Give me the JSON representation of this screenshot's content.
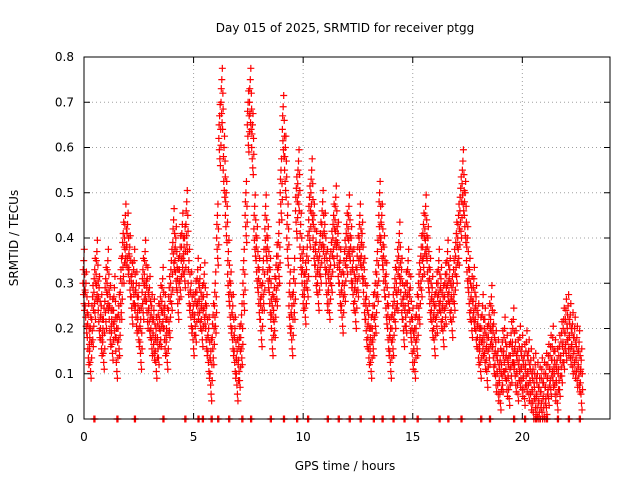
{
  "chart_data": {
    "type": "scatter",
    "title": "Day 015 of 2025, SRMTID for receiver ptgg",
    "xlabel": "GPS time / hours",
    "ylabel": "SRMTID / TECUs",
    "xlim": [
      0,
      24
    ],
    "ylim": [
      0,
      0.8
    ],
    "xticks": [
      0,
      5,
      10,
      15,
      20
    ],
    "yticks": [
      0,
      0.1,
      0.2,
      0.3,
      0.4,
      0.5,
      0.6,
      0.7,
      0.8
    ],
    "xtick_labels": [
      "0",
      "5",
      "10",
      "15",
      "20"
    ],
    "ytick_labels": [
      "0",
      "0.1",
      "0.2",
      "0.3",
      "0.4",
      "0.5",
      "0.6",
      "0.7",
      "0.8"
    ],
    "grid": true,
    "marker": "+",
    "color": "#ff0000",
    "series": [
      {
        "name": "SRMTID",
        "points": [
          [
            0.0,
            0.3
          ],
          [
            0.1,
            0.25
          ],
          [
            0.2,
            0.18
          ],
          [
            0.3,
            0.15
          ],
          [
            0.4,
            0.22
          ],
          [
            0.5,
            0.28
          ],
          [
            0.6,
            0.32
          ],
          [
            0.7,
            0.24
          ],
          [
            0.8,
            0.2
          ],
          [
            0.9,
            0.17
          ],
          [
            1.0,
            0.26
          ],
          [
            1.1,
            0.3
          ],
          [
            1.2,
            0.22
          ],
          [
            1.3,
            0.19
          ],
          [
            1.4,
            0.24
          ],
          [
            1.5,
            0.15
          ],
          [
            1.6,
            0.2
          ],
          [
            1.7,
            0.28
          ],
          [
            1.8,
            0.36
          ],
          [
            1.9,
            0.4
          ],
          [
            2.0,
            0.38
          ],
          [
            2.1,
            0.33
          ],
          [
            2.2,
            0.27
          ],
          [
            2.3,
            0.3
          ],
          [
            2.4,
            0.25
          ],
          [
            2.5,
            0.22
          ],
          [
            2.6,
            0.17
          ],
          [
            2.7,
            0.28
          ],
          [
            2.8,
            0.32
          ],
          [
            2.9,
            0.26
          ],
          [
            3.0,
            0.24
          ],
          [
            3.1,
            0.2
          ],
          [
            3.2,
            0.19
          ],
          [
            3.3,
            0.15
          ],
          [
            3.4,
            0.18
          ],
          [
            3.5,
            0.22
          ],
          [
            3.6,
            0.26
          ],
          [
            3.7,
            0.2
          ],
          [
            3.8,
            0.17
          ],
          [
            3.9,
            0.24
          ],
          [
            4.0,
            0.3
          ],
          [
            4.1,
            0.39
          ],
          [
            4.2,
            0.35
          ],
          [
            4.3,
            0.28
          ],
          [
            4.4,
            0.33
          ],
          [
            4.5,
            0.38
          ],
          [
            4.6,
            0.35
          ],
          [
            4.7,
            0.43
          ],
          [
            4.8,
            0.3
          ],
          [
            4.9,
            0.25
          ],
          [
            5.0,
            0.2
          ],
          [
            5.1,
            0.23
          ],
          [
            5.2,
            0.28
          ],
          [
            5.3,
            0.26
          ],
          [
            5.4,
            0.22
          ],
          [
            5.5,
            0.27
          ],
          [
            5.6,
            0.2
          ],
          [
            5.7,
            0.15
          ],
          [
            5.8,
            0.1
          ],
          [
            5.9,
            0.18
          ],
          [
            6.0,
            0.25
          ],
          [
            6.1,
            0.4
          ],
          [
            6.2,
            0.62
          ],
          [
            6.3,
            0.7
          ],
          [
            6.4,
            0.55
          ],
          [
            6.5,
            0.45
          ],
          [
            6.6,
            0.32
          ],
          [
            6.7,
            0.25
          ],
          [
            6.8,
            0.2
          ],
          [
            6.9,
            0.15
          ],
          [
            7.0,
            0.1
          ],
          [
            7.1,
            0.13
          ],
          [
            7.2,
            0.18
          ],
          [
            7.3,
            0.3
          ],
          [
            7.4,
            0.45
          ],
          [
            7.5,
            0.65
          ],
          [
            7.6,
            0.7
          ],
          [
            7.7,
            0.6
          ],
          [
            7.8,
            0.42
          ],
          [
            7.9,
            0.35
          ],
          [
            8.0,
            0.28
          ],
          [
            8.1,
            0.22
          ],
          [
            8.2,
            0.3
          ],
          [
            8.3,
            0.42
          ],
          [
            8.4,
            0.35
          ],
          [
            8.5,
            0.28
          ],
          [
            8.6,
            0.2
          ],
          [
            8.7,
            0.24
          ],
          [
            8.8,
            0.31
          ],
          [
            8.9,
            0.36
          ],
          [
            9.0,
            0.5
          ],
          [
            9.1,
            0.64
          ],
          [
            9.2,
            0.55
          ],
          [
            9.3,
            0.4
          ],
          [
            9.4,
            0.25
          ],
          [
            9.5,
            0.2
          ],
          [
            9.6,
            0.28
          ],
          [
            9.7,
            0.46
          ],
          [
            9.8,
            0.52
          ],
          [
            9.9,
            0.38
          ],
          [
            10.0,
            0.3
          ],
          [
            10.1,
            0.27
          ],
          [
            10.2,
            0.33
          ],
          [
            10.3,
            0.44
          ],
          [
            10.4,
            0.5
          ],
          [
            10.5,
            0.4
          ],
          [
            10.6,
            0.34
          ],
          [
            10.7,
            0.3
          ],
          [
            10.8,
            0.36
          ],
          [
            10.9,
            0.43
          ],
          [
            11.0,
            0.38
          ],
          [
            11.1,
            0.3
          ],
          [
            11.2,
            0.28
          ],
          [
            11.3,
            0.34
          ],
          [
            11.4,
            0.4
          ],
          [
            11.5,
            0.44
          ],
          [
            11.6,
            0.36
          ],
          [
            11.7,
            0.3
          ],
          [
            11.8,
            0.25
          ],
          [
            11.9,
            0.32
          ],
          [
            12.0,
            0.38
          ],
          [
            12.1,
            0.42
          ],
          [
            12.2,
            0.35
          ],
          [
            12.3,
            0.3
          ],
          [
            12.4,
            0.26
          ],
          [
            12.5,
            0.33
          ],
          [
            12.6,
            0.4
          ],
          [
            12.7,
            0.36
          ],
          [
            12.8,
            0.28
          ],
          [
            12.9,
            0.22
          ],
          [
            13.0,
            0.18
          ],
          [
            13.1,
            0.15
          ],
          [
            13.2,
            0.2
          ],
          [
            13.3,
            0.25
          ],
          [
            13.4,
            0.32
          ],
          [
            13.5,
            0.45
          ],
          [
            13.6,
            0.4
          ],
          [
            13.7,
            0.33
          ],
          [
            13.8,
            0.27
          ],
          [
            13.9,
            0.2
          ],
          [
            14.0,
            0.15
          ],
          [
            14.1,
            0.2
          ],
          [
            14.2,
            0.26
          ],
          [
            14.3,
            0.3
          ],
          [
            14.4,
            0.36
          ],
          [
            14.5,
            0.28
          ],
          [
            14.6,
            0.22
          ],
          [
            14.7,
            0.25
          ],
          [
            14.8,
            0.3
          ],
          [
            14.9,
            0.24
          ],
          [
            15.0,
            0.17
          ],
          [
            15.1,
            0.15
          ],
          [
            15.2,
            0.2
          ],
          [
            15.3,
            0.27
          ],
          [
            15.4,
            0.33
          ],
          [
            15.5,
            0.38
          ],
          [
            15.6,
            0.42
          ],
          [
            15.7,
            0.35
          ],
          [
            15.8,
            0.28
          ],
          [
            15.9,
            0.24
          ],
          [
            16.0,
            0.2
          ],
          [
            16.1,
            0.25
          ],
          [
            16.2,
            0.3
          ],
          [
            16.3,
            0.26
          ],
          [
            16.4,
            0.22
          ],
          [
            16.5,
            0.27
          ],
          [
            16.6,
            0.32
          ],
          [
            16.7,
            0.28
          ],
          [
            16.8,
            0.24
          ],
          [
            16.9,
            0.3
          ],
          [
            17.0,
            0.36
          ],
          [
            17.1,
            0.4
          ],
          [
            17.2,
            0.46
          ],
          [
            17.3,
            0.52
          ],
          [
            17.4,
            0.45
          ],
          [
            17.5,
            0.35
          ],
          [
            17.6,
            0.28
          ],
          [
            17.7,
            0.24
          ],
          [
            17.8,
            0.26
          ],
          [
            17.9,
            0.22
          ],
          [
            18.0,
            0.18
          ],
          [
            18.1,
            0.15
          ],
          [
            18.2,
            0.2
          ],
          [
            18.3,
            0.17
          ],
          [
            18.4,
            0.13
          ],
          [
            18.5,
            0.18
          ],
          [
            18.6,
            0.22
          ],
          [
            18.7,
            0.16
          ],
          [
            18.8,
            0.12
          ],
          [
            18.9,
            0.1
          ],
          [
            19.0,
            0.08
          ],
          [
            19.1,
            0.12
          ],
          [
            19.2,
            0.15
          ],
          [
            19.3,
            0.11
          ],
          [
            19.4,
            0.09
          ],
          [
            19.5,
            0.14
          ],
          [
            19.6,
            0.17
          ],
          [
            19.7,
            0.12
          ],
          [
            19.8,
            0.1
          ],
          [
            19.9,
            0.13
          ],
          [
            20.0,
            0.11
          ],
          [
            20.1,
            0.09
          ],
          [
            20.2,
            0.12
          ],
          [
            20.3,
            0.1
          ],
          [
            20.4,
            0.08
          ],
          [
            20.5,
            0.06
          ],
          [
            20.6,
            0.07
          ],
          [
            20.7,
            0.05
          ],
          [
            20.8,
            0.04
          ],
          [
            20.9,
            0.06
          ],
          [
            21.0,
            0.05
          ],
          [
            21.1,
            0.07
          ],
          [
            21.2,
            0.09
          ],
          [
            21.3,
            0.11
          ],
          [
            21.4,
            0.13
          ],
          [
            21.5,
            0.1
          ],
          [
            21.6,
            0.08
          ],
          [
            21.7,
            0.11
          ],
          [
            21.8,
            0.14
          ],
          [
            21.9,
            0.17
          ],
          [
            22.0,
            0.19
          ],
          [
            22.1,
            0.2
          ],
          [
            22.2,
            0.18
          ],
          [
            22.3,
            0.16
          ],
          [
            22.4,
            0.15
          ],
          [
            22.5,
            0.13
          ],
          [
            22.6,
            0.12
          ],
          [
            22.7,
            0.08
          ]
        ]
      }
    ],
    "zero_points_x": [
      0.45,
      1.5,
      2.3,
      3.6,
      4.6,
      5.2,
      5.4,
      5.8,
      6.1,
      6.6,
      7.2,
      7.6,
      8.5,
      9.1,
      9.7,
      10.2,
      11.1,
      11.6,
      12.1,
      12.6,
      13.2,
      13.6,
      14.1,
      14.6,
      15.2,
      16.2,
      16.6,
      17.2,
      18.1,
      18.5,
      19.6,
      20.1,
      20.6,
      21.1,
      21.6,
      22.1,
      22.6
    ]
  }
}
